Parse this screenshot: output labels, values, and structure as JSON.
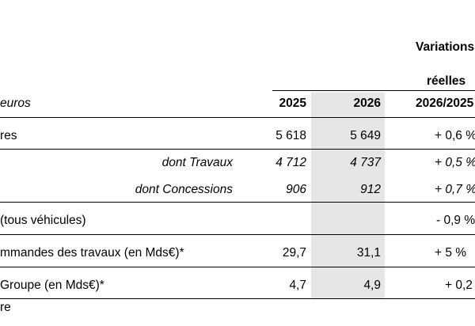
{
  "header": {
    "variations_label": "Variations",
    "reelles_label": "réelles",
    "unit_label": "euros",
    "col_2025": "2025",
    "col_2026": "2026",
    "col_change": "2026/2025"
  },
  "rows": [
    {
      "label": "res",
      "v2025": "5 618",
      "v2026": "5 649",
      "change": "+ 0,6 %"
    },
    {
      "label": "dont Travaux",
      "v2025": "4 712",
      "v2026": "4 737",
      "change": "+ 0,5 %"
    },
    {
      "label": "dont Concessions",
      "v2025": "906",
      "v2026": "912",
      "change": "+ 0,7 %"
    },
    {
      "label": "(tous véhicules)",
      "v2025": "",
      "v2026": "",
      "change": "- 0,9 %"
    },
    {
      "label": "mmandes des travaux (en Mds€)*",
      "v2025": "29,7",
      "v2026": "31,1",
      "change": "+ 5 %"
    },
    {
      "label": "Groupe (en Mds€)*",
      "v2025": "4,7",
      "v2026": "4,9",
      "change": "+ 0,2"
    }
  ],
  "footnote": "re",
  "colors": {
    "shade": "#e6e6e6",
    "rule": "#000000"
  }
}
